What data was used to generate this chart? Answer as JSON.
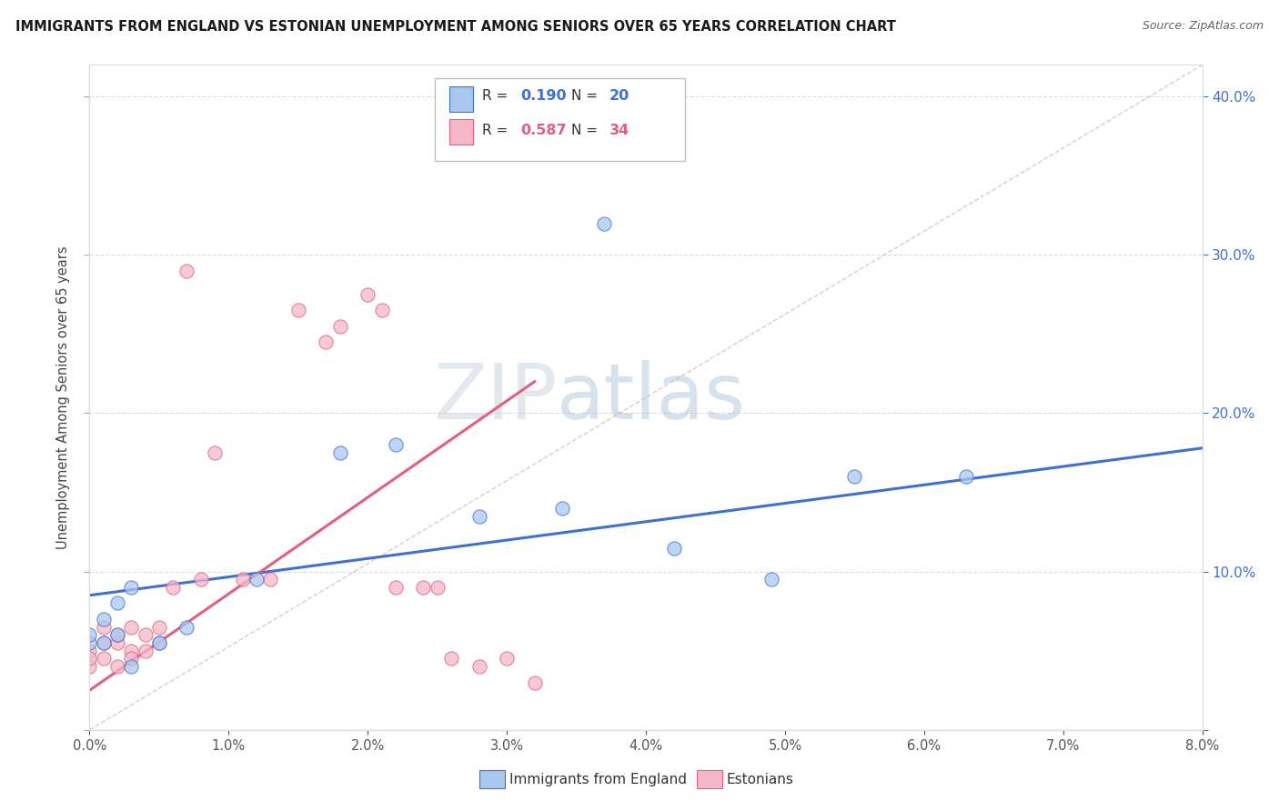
{
  "title": "IMMIGRANTS FROM ENGLAND VS ESTONIAN UNEMPLOYMENT AMONG SENIORS OVER 65 YEARS CORRELATION CHART",
  "source": "Source: ZipAtlas.com",
  "ylabel": "Unemployment Among Seniors over 65 years",
  "xlim": [
    0.0,
    0.08
  ],
  "ylim": [
    0.0,
    0.42
  ],
  "xticks": [
    0.0,
    0.01,
    0.02,
    0.03,
    0.04,
    0.05,
    0.06,
    0.07,
    0.08
  ],
  "yticks": [
    0.0,
    0.1,
    0.2,
    0.3,
    0.4
  ],
  "ytick_labels": [
    "",
    "10.0%",
    "20.0%",
    "30.0%",
    "40.0%"
  ],
  "blue_R": "0.190",
  "blue_N": "20",
  "pink_R": "0.587",
  "pink_N": "34",
  "blue_color": "#a8c8f0",
  "pink_color": "#f5b8c8",
  "blue_line_color": "#4070d0",
  "pink_line_color": "#e06080",
  "blue_points_x": [
    0.0,
    0.0,
    0.001,
    0.001,
    0.002,
    0.002,
    0.003,
    0.003,
    0.005,
    0.007,
    0.012,
    0.018,
    0.022,
    0.028,
    0.034,
    0.037,
    0.042,
    0.049,
    0.055,
    0.063
  ],
  "blue_points_y": [
    0.055,
    0.06,
    0.055,
    0.07,
    0.06,
    0.08,
    0.04,
    0.09,
    0.055,
    0.065,
    0.095,
    0.175,
    0.18,
    0.135,
    0.14,
    0.32,
    0.115,
    0.095,
    0.16,
    0.16
  ],
  "pink_points_x": [
    0.0,
    0.0,
    0.0,
    0.001,
    0.001,
    0.001,
    0.002,
    0.002,
    0.002,
    0.003,
    0.003,
    0.003,
    0.004,
    0.004,
    0.005,
    0.005,
    0.006,
    0.007,
    0.008,
    0.009,
    0.011,
    0.013,
    0.015,
    0.017,
    0.018,
    0.02,
    0.021,
    0.022,
    0.024,
    0.025,
    0.026,
    0.028,
    0.03,
    0.032
  ],
  "pink_points_y": [
    0.05,
    0.04,
    0.045,
    0.055,
    0.065,
    0.045,
    0.055,
    0.04,
    0.06,
    0.05,
    0.065,
    0.045,
    0.06,
    0.05,
    0.065,
    0.055,
    0.09,
    0.29,
    0.095,
    0.175,
    0.095,
    0.095,
    0.265,
    0.245,
    0.255,
    0.275,
    0.265,
    0.09,
    0.09,
    0.09,
    0.045,
    0.04,
    0.045,
    0.03
  ],
  "blue_trend_x": [
    0.0,
    0.08
  ],
  "blue_trend_y": [
    0.085,
    0.178
  ],
  "pink_trend_x": [
    0.0,
    0.032
  ],
  "pink_trend_y": [
    0.025,
    0.22
  ],
  "diag_line_x": [
    0.0,
    0.08
  ],
  "diag_line_y": [
    0.0,
    0.42
  ]
}
